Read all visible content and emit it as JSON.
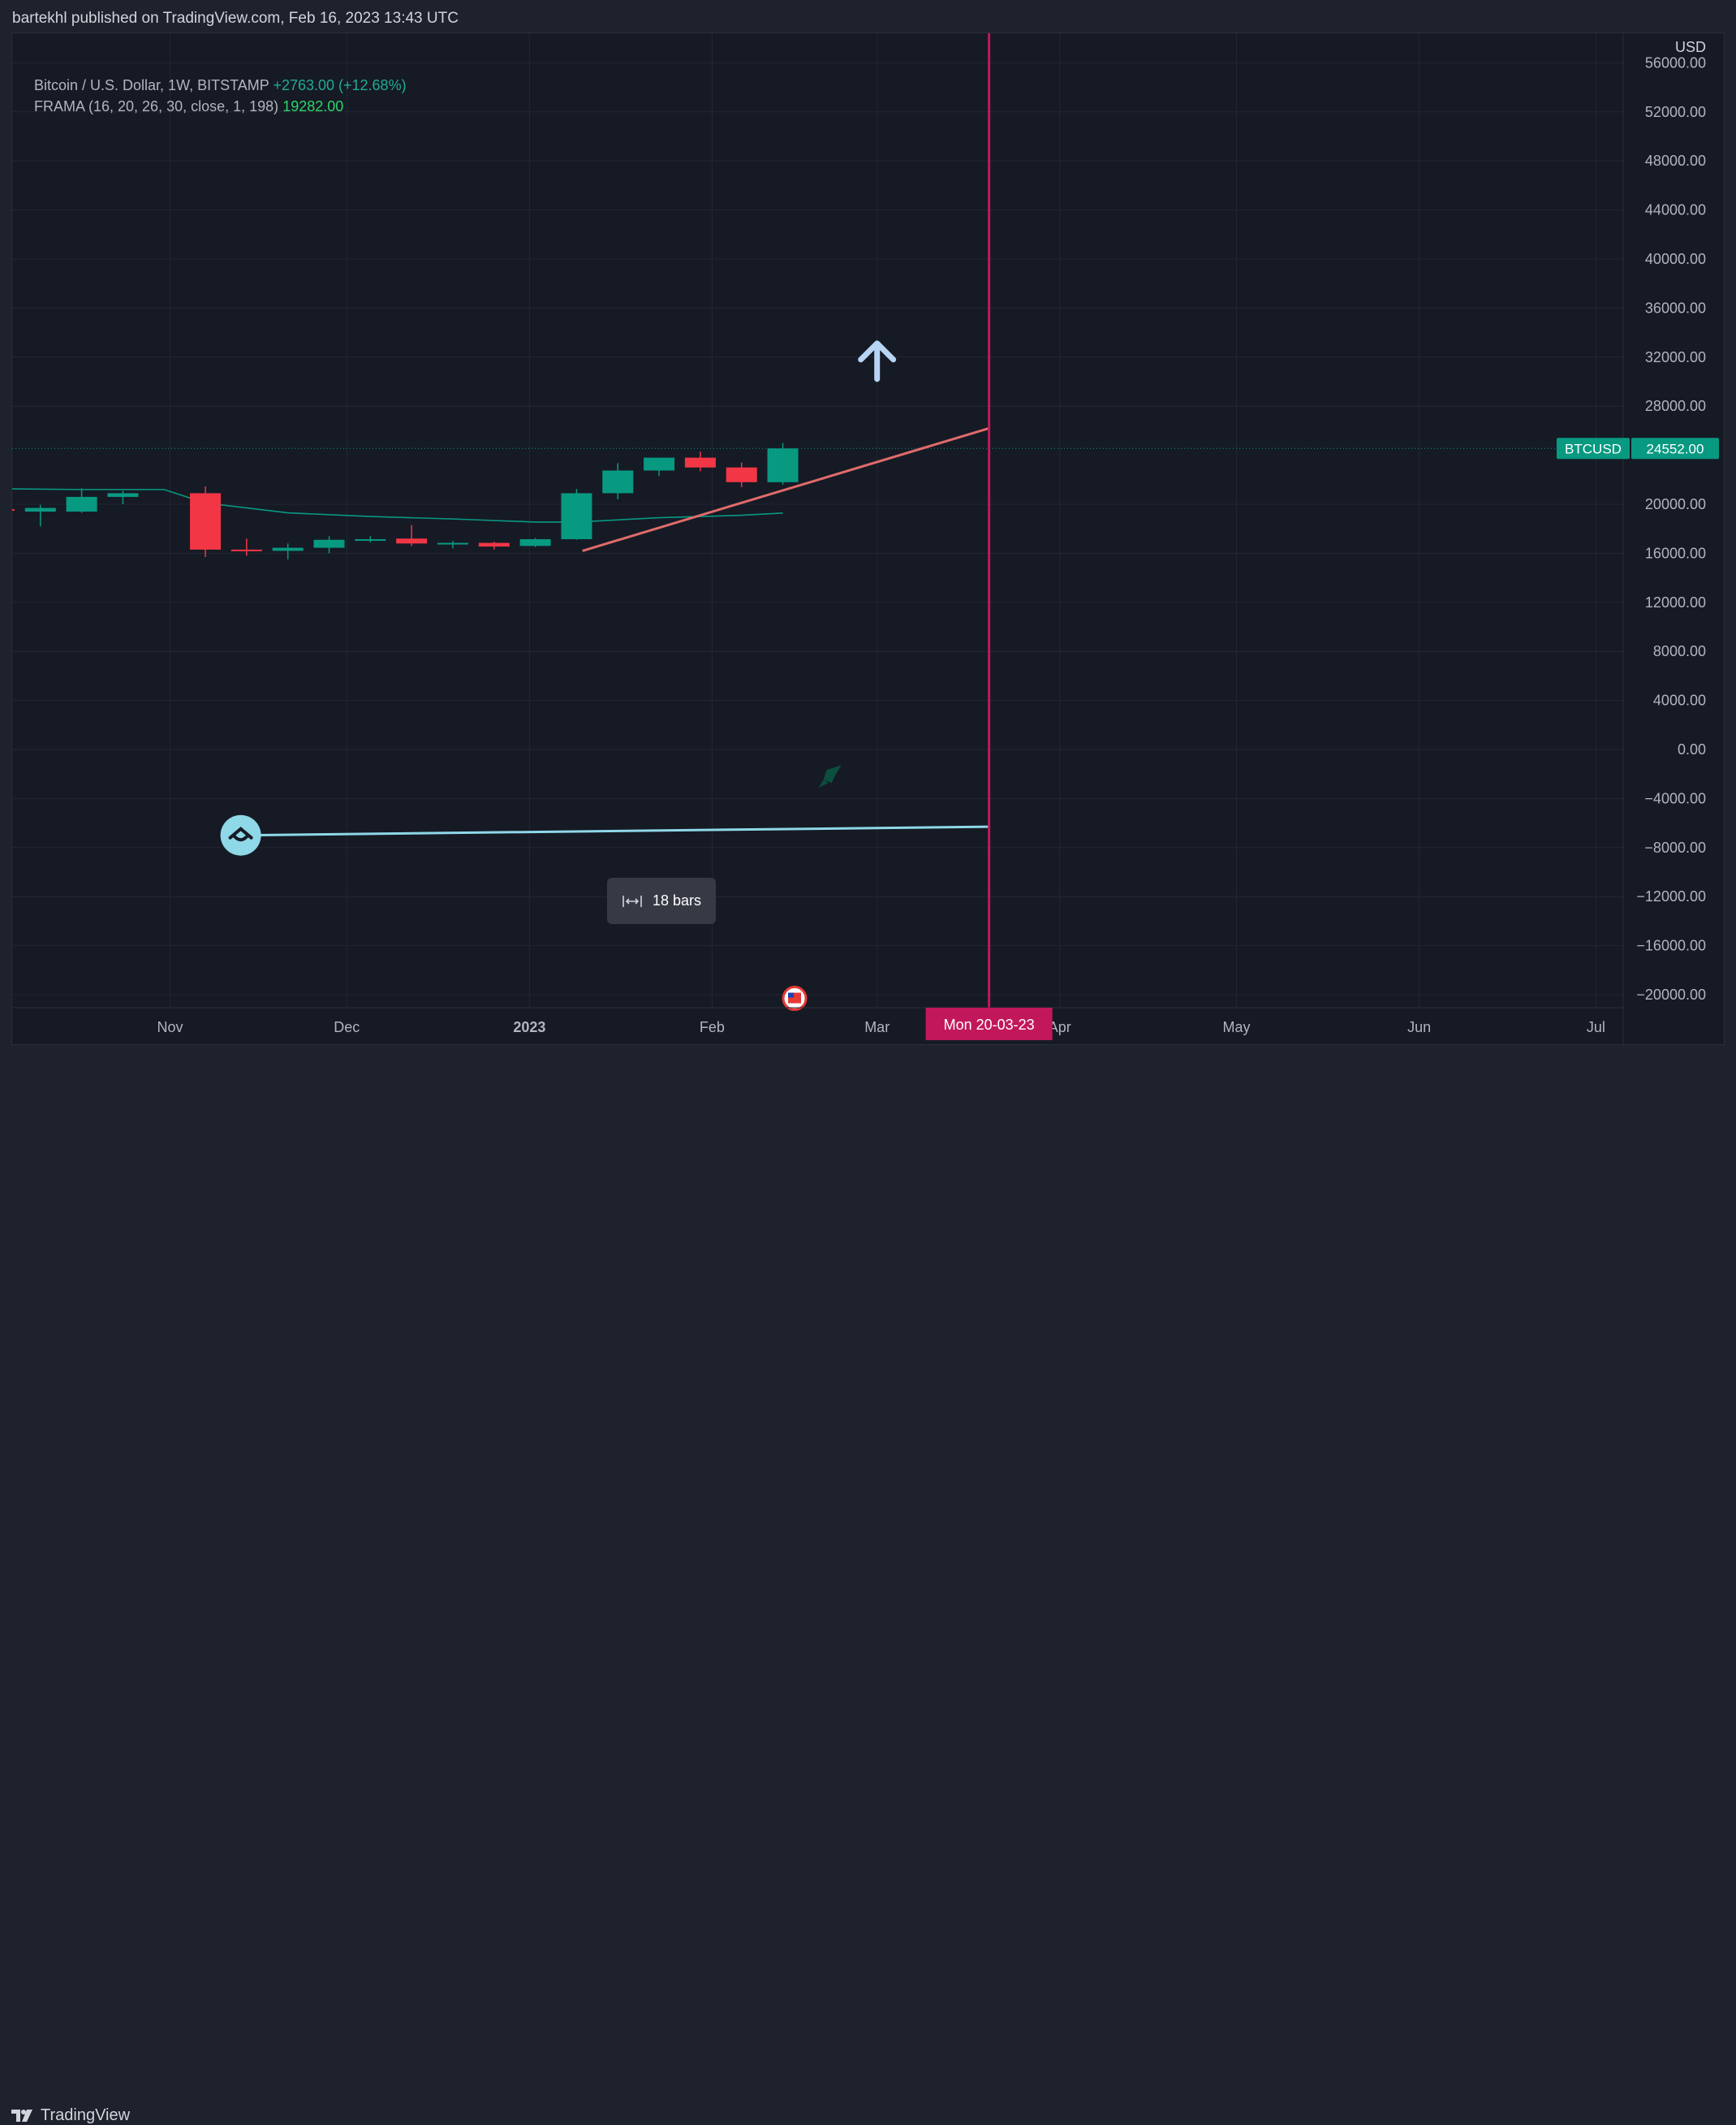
{
  "header": {
    "published_text": "bartekhl published on TradingView.com, Feb 16, 2023 13:43 UTC"
  },
  "legend": {
    "symbol": "Bitcoin / U.S. Dollar, 1W, BITSTAMP",
    "change": "+2763.00 (+12.68%)",
    "indicator": "FRAMA (16, 20, 26, 30, close, 1, 198)",
    "indicator_value": "19282.00"
  },
  "price_tag": {
    "symbol": "BTCUSD",
    "value": "24552.00"
  },
  "date_tag": "Mon 20-03-23",
  "bars_label": "18 bars",
  "footer": {
    "brand": "TradingView"
  },
  "colors": {
    "up": "#089981",
    "down": "#f23645",
    "frama": "#089981",
    "trendline": "#e06b6b",
    "vline": "#c2185b",
    "hline": "#8fd8e8",
    "arrow": "#b8d4f5"
  },
  "chart_data": {
    "type": "candlestick",
    "currency": "USD",
    "y_ticks": [
      "56000.00",
      "52000.00",
      "48000.00",
      "44000.00",
      "40000.00",
      "36000.00",
      "32000.00",
      "28000.00",
      "20000.00",
      "16000.00",
      "12000.00",
      "8000.00",
      "4000.00",
      "0.00",
      "−4000.00",
      "−8000.00",
      "−12000.00",
      "−16000.00",
      "−20000.00"
    ],
    "x_ticks": [
      {
        "label": "Nov",
        "date": "2022-11-01",
        "bold": false
      },
      {
        "label": "Dec",
        "date": "2022-12-01",
        "bold": false
      },
      {
        "label": "2023",
        "date": "2023-01-01",
        "bold": true
      },
      {
        "label": "Feb",
        "date": "2023-02-01",
        "bold": false
      },
      {
        "label": "Mar",
        "date": "2023-03-01",
        "bold": false
      },
      {
        "label": "Apr",
        "date": "2023-04-01",
        "bold": false
      },
      {
        "label": "May",
        "date": "2023-05-01",
        "bold": false
      },
      {
        "label": "Jun",
        "date": "2023-06-01",
        "bold": false
      },
      {
        "label": "Jul",
        "date": "2023-07-01",
        "bold": false
      }
    ],
    "candles": [
      {
        "date": "2022-10-03",
        "open": 19600,
        "high": 19700,
        "low": 19400,
        "close": 19500
      },
      {
        "date": "2022-10-10",
        "open": 19400,
        "high": 19950,
        "low": 18200,
        "close": 19700
      },
      {
        "date": "2022-10-17",
        "open": 19400,
        "high": 21300,
        "low": 19300,
        "close": 20600
      },
      {
        "date": "2022-10-24",
        "open": 20600,
        "high": 21100,
        "low": 20000,
        "close": 20900
      },
      {
        "date": "2022-11-07",
        "open": 20900,
        "high": 21450,
        "low": 15700,
        "close": 16300
      },
      {
        "date": "2022-11-14",
        "open": 16300,
        "high": 17200,
        "low": 15800,
        "close": 16200
      },
      {
        "date": "2022-11-21",
        "open": 16200,
        "high": 16800,
        "low": 15500,
        "close": 16450
      },
      {
        "date": "2022-11-28",
        "open": 16450,
        "high": 17400,
        "low": 16000,
        "close": 17100
      },
      {
        "date": "2022-12-05",
        "open": 17100,
        "high": 17400,
        "low": 16900,
        "close": 17150
      },
      {
        "date": "2022-12-12",
        "open": 17200,
        "high": 18300,
        "low": 16600,
        "close": 16800
      },
      {
        "date": "2022-12-19",
        "open": 16800,
        "high": 17000,
        "low": 16400,
        "close": 16850
      },
      {
        "date": "2022-12-26",
        "open": 16850,
        "high": 16950,
        "low": 16300,
        "close": 16550
      },
      {
        "date": "2023-01-02",
        "open": 16600,
        "high": 17250,
        "low": 16500,
        "close": 17150
      },
      {
        "date": "2023-01-09",
        "open": 17150,
        "high": 21250,
        "low": 17100,
        "close": 20900
      },
      {
        "date": "2023-01-16",
        "open": 20900,
        "high": 23350,
        "low": 20400,
        "close": 22750
      },
      {
        "date": "2023-01-23",
        "open": 22750,
        "high": 23800,
        "low": 22300,
        "close": 23800
      },
      {
        "date": "2023-01-30",
        "open": 23800,
        "high": 24300,
        "low": 22700,
        "close": 23000
      },
      {
        "date": "2023-02-06",
        "open": 23000,
        "high": 23400,
        "low": 21400,
        "close": 21800
      },
      {
        "date": "2023-02-13",
        "open": 21800,
        "high": 25000,
        "low": 21600,
        "close": 24552
      }
    ],
    "frama": {
      "name": "FRAMA",
      "points": [
        {
          "date": "2022-09-26",
          "value": 21300
        },
        {
          "date": "2022-10-17",
          "value": 21200
        },
        {
          "date": "2022-10-31",
          "value": 21200
        },
        {
          "date": "2022-11-07",
          "value": 20100
        },
        {
          "date": "2022-11-21",
          "value": 19300
        },
        {
          "date": "2022-12-05",
          "value": 19000
        },
        {
          "date": "2022-12-19",
          "value": 18800
        },
        {
          "date": "2023-01-02",
          "value": 18550
        },
        {
          "date": "2023-01-09",
          "value": 18550
        },
        {
          "date": "2023-01-23",
          "value": 18900
        },
        {
          "date": "2023-02-06",
          "value": 19100
        },
        {
          "date": "2023-02-13",
          "value": 19282
        }
      ]
    },
    "current_price": 24552,
    "drawings": {
      "trendline": [
        {
          "date": "2023-01-10",
          "value": 16200
        },
        {
          "date": "2023-03-20",
          "value": 26200
        }
      ],
      "horizontal_line": [
        {
          "date": "2022-11-13",
          "value": -7000
        },
        {
          "date": "2023-03-20",
          "value": -6300
        }
      ],
      "vertical_line_date": "2023-03-20",
      "up_arrow": {
        "date": "2023-03-01",
        "value": 31800
      },
      "rocket_icon": {
        "date": "2023-02-21",
        "value": -2200
      },
      "flag_icon": {
        "date": "2023-02-15",
        "value": -20300
      }
    }
  }
}
